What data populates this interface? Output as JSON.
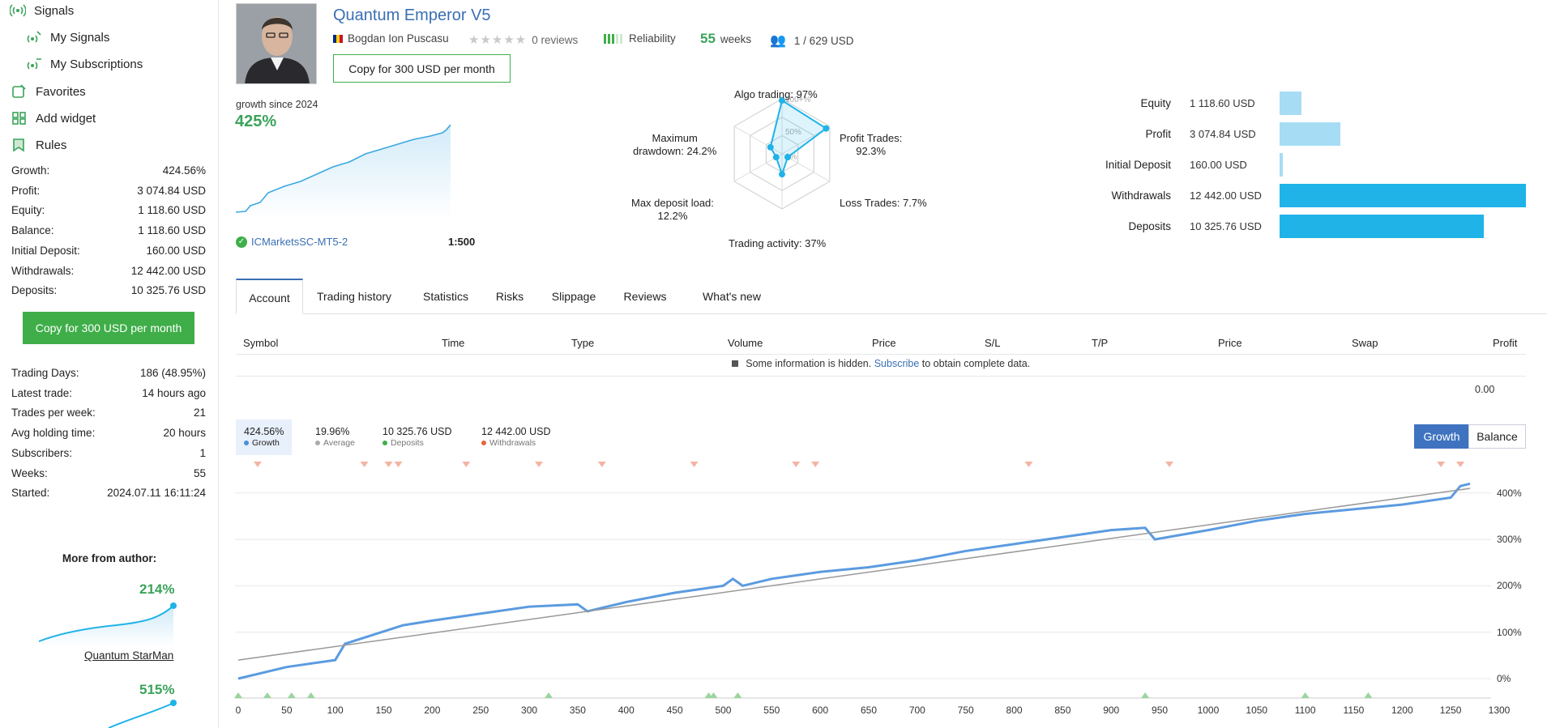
{
  "sidebar": {
    "nav": {
      "signals": "Signals",
      "my_signals": "My Signals",
      "my_subscriptions": "My Subscriptions",
      "favorites": "Favorites",
      "add_widget": "Add widget",
      "rules": "Rules"
    },
    "stats": [
      {
        "label": "Growth:",
        "value": "424.56%"
      },
      {
        "label": "Profit:",
        "value": "3 074.84 USD"
      },
      {
        "label": "Equity:",
        "value": "1 118.60 USD"
      },
      {
        "label": "Balance:",
        "value": "1 118.60 USD"
      },
      {
        "label": "Initial Deposit:",
        "value": "160.00 USD"
      },
      {
        "label": "Withdrawals:",
        "value": "12 442.00 USD"
      },
      {
        "label": "Deposits:",
        "value": "10 325.76 USD"
      }
    ],
    "copy_button": "Copy for 300 USD per month",
    "stats2": [
      {
        "label": "Trading Days:",
        "value": "186 (48.95%)"
      },
      {
        "label": "Latest trade:",
        "value": "14 hours ago"
      },
      {
        "label": "Trades per week:",
        "value": "21"
      },
      {
        "label": "Avg holding time:",
        "value": "20 hours"
      },
      {
        "label": "Subscribers:",
        "value": "1"
      },
      {
        "label": "Weeks:",
        "value": "55"
      },
      {
        "label": "Started:",
        "value": "2024.07.11 16:11:24"
      }
    ],
    "more_from_author": "More from author:",
    "authors": [
      {
        "pct": "214%",
        "name": "Quantum StarMan"
      },
      {
        "pct": "515%",
        "name": ""
      }
    ]
  },
  "header": {
    "title": "Quantum Emperor V5",
    "author": "Bogdan Ion Puscasu",
    "reviews": "0 reviews",
    "reliability": "Reliability",
    "weeks_num": "55",
    "weeks_word": "weeks",
    "subscribers": "1 / 629 USD",
    "copy_button": "Copy for 300 USD per month",
    "growth_since": "growth since 2024",
    "growth_value": "425%",
    "broker": "ICMarketsSC-MT5-2",
    "leverage": "1:500"
  },
  "radar": {
    "algo": "Algo trading: 97%",
    "profit_trades_1": "Profit Trades:",
    "profit_trades_2": "92.3%",
    "loss": "Loss Trades: 7.7%",
    "activity": "Trading activity: 37%",
    "deposit_load_1": "Max deposit load:",
    "deposit_load_2": "12.2%",
    "drawdown_1": "Maximum",
    "drawdown_2": "drawdown: 24.2%",
    "ring_labels": [
      "100+%",
      "50%",
      "0%"
    ],
    "values": {
      "algo": 0.97,
      "profit": 0.923,
      "loss": 0.077,
      "activity": 0.37,
      "deposit_load": 0.122,
      "drawdown": 0.242
    }
  },
  "bars": [
    {
      "label": "Equity",
      "value": "1 118.60 USD",
      "amount": 1118.6,
      "color": "#a7dcf5"
    },
    {
      "label": "Profit",
      "value": "3 074.84 USD",
      "amount": 3074.84,
      "color": "#a7dcf5"
    },
    {
      "label": "Initial Deposit",
      "value": "160.00 USD",
      "amount": 160.0,
      "color": "#a7dcf5"
    },
    {
      "label": "Withdrawals",
      "value": "12 442.00 USD",
      "amount": 12442.0,
      "color": "#1fb3e8"
    },
    {
      "label": "Deposits",
      "value": "10 325.76 USD",
      "amount": 10325.76,
      "color": "#1fb3e8"
    }
  ],
  "tabs": [
    "Account",
    "Trading history",
    "Statistics",
    "Risks",
    "Slippage",
    "Reviews",
    "What's new"
  ],
  "table": {
    "headers": [
      "Symbol",
      "Time",
      "Type",
      "Volume",
      "Price",
      "S/L",
      "T/P",
      "Price",
      "Swap",
      "Profit"
    ],
    "hidden_prefix": "Some information is hidden.",
    "hidden_link": "Subscribe",
    "hidden_suffix": "to obtain complete data.",
    "total": "0.00"
  },
  "legend": [
    {
      "value": "424.56%",
      "label": "Growth",
      "color": "#4a90d9"
    },
    {
      "value": "19.96%",
      "label": "Average",
      "color": "#aaaaaa"
    },
    {
      "value": "10 325.76 USD",
      "label": "Deposits",
      "color": "#3fae49"
    },
    {
      "value": "12 442.00 USD",
      "label": "Withdrawals",
      "color": "#e8633b"
    }
  ],
  "toggles": {
    "growth": "Growth",
    "balance": "Balance"
  },
  "colors": {
    "accent_green": "#3fae49",
    "link_blue": "#3a6fb4",
    "growth_line": "#5b9be0"
  },
  "chart_data": {
    "type": "line",
    "xlabel": "",
    "ylabel": "",
    "xlim": [
      0,
      1300
    ],
    "ylim": [
      -20,
      440
    ],
    "x_ticks": [
      0,
      50,
      100,
      150,
      200,
      250,
      300,
      350,
      400,
      450,
      500,
      550,
      600,
      650,
      700,
      750,
      800,
      850,
      900,
      950,
      1000,
      1050,
      1100,
      1150,
      1200,
      1250,
      1300
    ],
    "y_ticks": [
      "0%",
      "100%",
      "200%",
      "300%",
      "400%"
    ],
    "series": [
      {
        "name": "Growth",
        "x": [
          0,
          50,
          100,
          110,
          140,
          170,
          200,
          250,
          300,
          350,
          360,
          400,
          450,
          500,
          510,
          520,
          550,
          600,
          650,
          700,
          750,
          800,
          850,
          900,
          935,
          945,
          1000,
          1050,
          1100,
          1150,
          1200,
          1250,
          1260,
          1270
        ],
        "y": [
          0,
          25,
          40,
          75,
          95,
          115,
          125,
          140,
          155,
          160,
          145,
          165,
          185,
          200,
          215,
          200,
          215,
          230,
          240,
          255,
          275,
          290,
          305,
          320,
          325,
          300,
          320,
          340,
          355,
          365,
          375,
          390,
          415,
          420
        ]
      },
      {
        "name": "Average",
        "x": [
          0,
          1270
        ],
        "y": [
          40,
          410
        ]
      }
    ],
    "deposit_markers_x": [
      0,
      30,
      55,
      75,
      320,
      485,
      490,
      515,
      935,
      1100,
      1165
    ],
    "withdrawal_markers_x": [
      20,
      130,
      155,
      165,
      235,
      310,
      375,
      470,
      575,
      595,
      815,
      960,
      1240,
      1260
    ]
  }
}
